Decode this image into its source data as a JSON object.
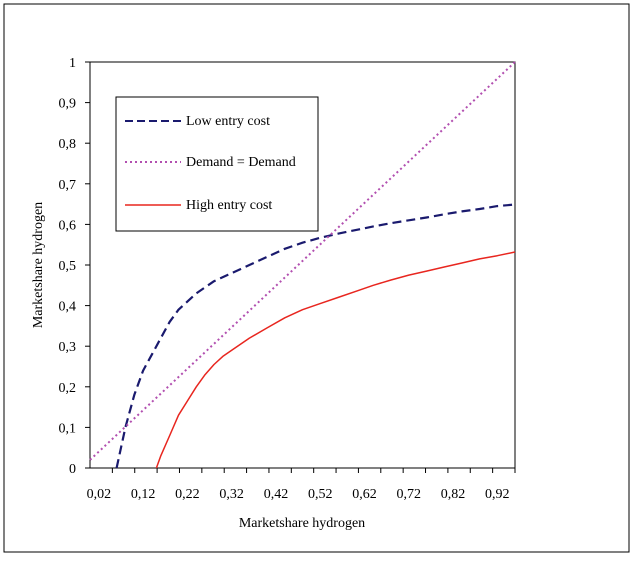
{
  "chart_data": {
    "type": "line",
    "title": "",
    "xlabel": "Marketshare hydrogen",
    "ylabel": "Marketshare hydrogen",
    "xlim": [
      0,
      0.96
    ],
    "ylim": [
      0,
      1
    ],
    "x_tick_labels": [
      "0,02",
      "0,12",
      "0,22",
      "0,32",
      "0,42",
      "0,52",
      "0,62",
      "0,72",
      "0,82",
      "0,92"
    ],
    "x_tick_values": [
      0.02,
      0.12,
      0.22,
      0.32,
      0.42,
      0.52,
      0.62,
      0.72,
      0.82,
      0.92
    ],
    "y_tick_labels": [
      "0",
      "0,1",
      "0,2",
      "0,3",
      "0,4",
      "0,5",
      "0,6",
      "0,7",
      "0,8",
      "0,9",
      "1"
    ],
    "y_tick_values": [
      0,
      0.1,
      0.2,
      0.3,
      0.4,
      0.5,
      0.6,
      0.7,
      0.8,
      0.9,
      1
    ],
    "grid": false,
    "legend_position": "top-left",
    "series": [
      {
        "name": "Low entry cost",
        "style": "dashed",
        "color": "#1a1a6e",
        "x": [
          0.06,
          0.07,
          0.08,
          0.1,
          0.12,
          0.14,
          0.16,
          0.18,
          0.2,
          0.24,
          0.28,
          0.32,
          0.36,
          0.4,
          0.44,
          0.48,
          0.52,
          0.56,
          0.6,
          0.64,
          0.68,
          0.72,
          0.76,
          0.8,
          0.84,
          0.88,
          0.92,
          0.96
        ],
        "y": [
          0.0,
          0.05,
          0.1,
          0.18,
          0.24,
          0.28,
          0.32,
          0.36,
          0.39,
          0.43,
          0.46,
          0.48,
          0.5,
          0.52,
          0.54,
          0.555,
          0.567,
          0.577,
          0.586,
          0.595,
          0.603,
          0.61,
          0.617,
          0.625,
          0.632,
          0.638,
          0.645,
          0.649
        ]
      },
      {
        "name": "Demand = Demand",
        "style": "dotted",
        "color": "#b24fb0",
        "x": [
          0.0,
          0.96
        ],
        "y": [
          0.02,
          1.0
        ]
      },
      {
        "name": "High entry cost",
        "style": "solid",
        "color": "#e8261f",
        "x": [
          0.15,
          0.16,
          0.18,
          0.2,
          0.22,
          0.24,
          0.26,
          0.28,
          0.3,
          0.32,
          0.36,
          0.4,
          0.44,
          0.48,
          0.52,
          0.56,
          0.6,
          0.64,
          0.68,
          0.72,
          0.76,
          0.8,
          0.84,
          0.88,
          0.92,
          0.96
        ],
        "y": [
          0.0,
          0.03,
          0.08,
          0.13,
          0.165,
          0.2,
          0.23,
          0.255,
          0.275,
          0.29,
          0.32,
          0.345,
          0.37,
          0.39,
          0.405,
          0.42,
          0.435,
          0.45,
          0.463,
          0.475,
          0.485,
          0.495,
          0.505,
          0.515,
          0.523,
          0.532
        ]
      }
    ]
  }
}
